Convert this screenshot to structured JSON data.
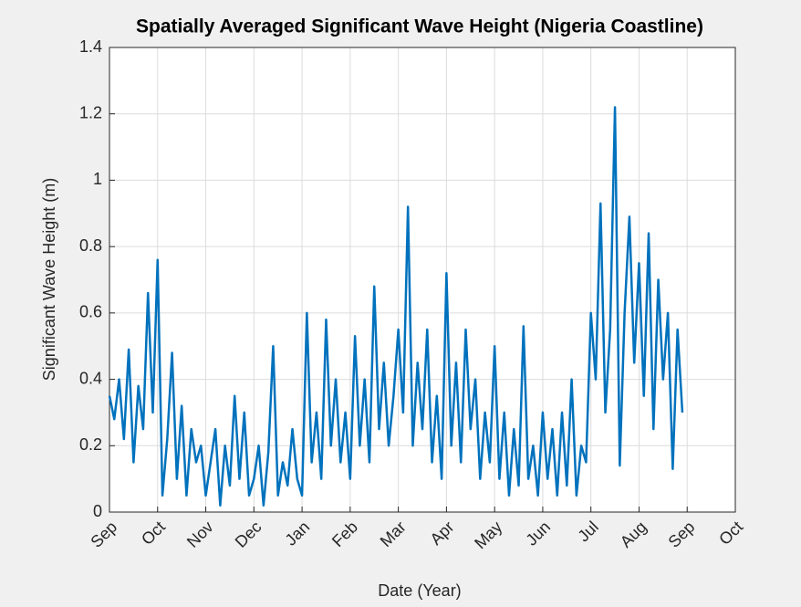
{
  "chart_data": {
    "type": "line",
    "title": "Spatially Averaged Significant Wave Height (Nigeria Coastline)",
    "xlabel": "Date (Year)",
    "ylabel": "Significant Wave Height (m)",
    "color": "#0072bd",
    "grid": true,
    "xlim": [
      0,
      13
    ],
    "xticks": [
      {
        "value": 0,
        "label": "Sep"
      },
      {
        "value": 1,
        "label": "Oct"
      },
      {
        "value": 2,
        "label": "Nov"
      },
      {
        "value": 3,
        "label": "Dec"
      },
      {
        "value": 4,
        "label": "Jan"
      },
      {
        "value": 5,
        "label": "Feb"
      },
      {
        "value": 6,
        "label": "Mar"
      },
      {
        "value": 7,
        "label": "Apr"
      },
      {
        "value": 8,
        "label": "May"
      },
      {
        "value": 9,
        "label": "Jun"
      },
      {
        "value": 10,
        "label": "Jul"
      },
      {
        "value": 11,
        "label": "Aug"
      },
      {
        "value": 12,
        "label": "Sep"
      },
      {
        "value": 13,
        "label": "Oct"
      }
    ],
    "ylim": [
      0,
      1.4
    ],
    "yticks": [
      0,
      0.2,
      0.4,
      0.6,
      0.8,
      1,
      1.2,
      1.4
    ],
    "x": [
      0,
      0.1,
      0.2,
      0.3,
      0.4,
      0.5,
      0.6,
      0.7,
      0.8,
      0.9,
      1,
      1.1,
      1.2,
      1.3,
      1.4,
      1.5,
      1.6,
      1.7,
      1.8,
      1.9,
      2,
      2.1,
      2.2,
      2.3,
      2.4,
      2.5,
      2.6,
      2.7,
      2.8,
      2.9,
      3,
      3.1,
      3.2,
      3.3,
      3.4,
      3.5,
      3.6,
      3.7,
      3.8,
      3.9,
      4,
      4.1,
      4.2,
      4.3,
      4.4,
      4.5,
      4.6,
      4.7,
      4.8,
      4.9,
      5,
      5.1,
      5.2,
      5.3,
      5.4,
      5.5,
      5.6,
      5.7,
      5.8,
      5.9,
      6,
      6.1,
      6.2,
      6.3,
      6.4,
      6.5,
      6.6,
      6.7,
      6.8,
      6.9,
      7,
      7.1,
      7.2,
      7.3,
      7.4,
      7.5,
      7.6,
      7.7,
      7.8,
      7.9,
      8,
      8.1,
      8.2,
      8.3,
      8.4,
      8.5,
      8.6,
      8.7,
      8.8,
      8.9,
      9,
      9.1,
      9.2,
      9.3,
      9.4,
      9.5,
      9.6,
      9.7,
      9.8,
      9.9,
      10,
      10.1,
      10.2,
      10.3,
      10.4,
      10.5,
      10.6,
      10.7,
      10.8,
      10.9,
      11,
      11.1,
      11.2,
      11.3,
      11.4,
      11.5,
      11.6,
      11.7,
      11.8,
      11.9
    ],
    "values": [
      0.35,
      0.28,
      0.4,
      0.22,
      0.49,
      0.15,
      0.38,
      0.25,
      0.66,
      0.3,
      0.76,
      0.05,
      0.22,
      0.48,
      0.1,
      0.32,
      0.05,
      0.25,
      0.15,
      0.2,
      0.05,
      0.15,
      0.25,
      0.02,
      0.2,
      0.08,
      0.35,
      0.1,
      0.3,
      0.05,
      0.1,
      0.2,
      0.02,
      0.18,
      0.5,
      0.05,
      0.15,
      0.08,
      0.25,
      0.1,
      0.05,
      0.6,
      0.15,
      0.3,
      0.1,
      0.58,
      0.2,
      0.4,
      0.15,
      0.3,
      0.1,
      0.53,
      0.2,
      0.4,
      0.15,
      0.68,
      0.25,
      0.45,
      0.2,
      0.35,
      0.55,
      0.3,
      0.92,
      0.2,
      0.45,
      0.25,
      0.55,
      0.15,
      0.35,
      0.1,
      0.72,
      0.2,
      0.45,
      0.15,
      0.55,
      0.25,
      0.4,
      0.1,
      0.3,
      0.15,
      0.5,
      0.1,
      0.3,
      0.05,
      0.25,
      0.08,
      0.56,
      0.1,
      0.2,
      0.05,
      0.3,
      0.1,
      0.25,
      0.05,
      0.3,
      0.08,
      0.4,
      0.05,
      0.2,
      0.15,
      0.6,
      0.4,
      0.93,
      0.3,
      0.55,
      1.22,
      0.14,
      0.6,
      0.89,
      0.45,
      0.75,
      0.35,
      0.84,
      0.25,
      0.7,
      0.4,
      0.6,
      0.13,
      0.55,
      0.3
    ]
  }
}
